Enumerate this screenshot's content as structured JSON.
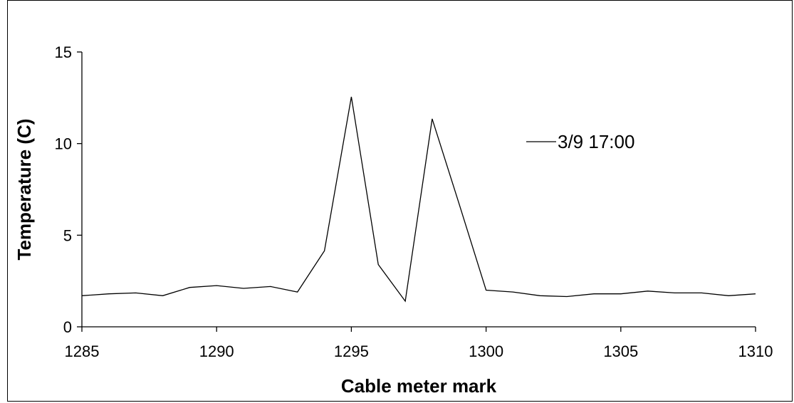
{
  "chart_data": {
    "type": "line",
    "title": "",
    "xlabel": "Cable meter mark",
    "ylabel": "Temperature (C)",
    "xlim": [
      1285,
      1310
    ],
    "ylim": [
      0,
      15
    ],
    "x_ticks": [
      1285,
      1290,
      1295,
      1300,
      1305,
      1310
    ],
    "y_ticks": [
      0,
      5,
      10,
      15
    ],
    "grid": false,
    "legend_position": "right",
    "series": [
      {
        "name": "3/9 17:00",
        "color": "#000000",
        "x": [
          1285,
          1286,
          1287,
          1288,
          1289,
          1290,
          1291,
          1292,
          1293,
          1294,
          1295,
          1296,
          1297,
          1298,
          1299,
          1300,
          1301,
          1302,
          1303,
          1304,
          1305,
          1306,
          1307,
          1308,
          1309,
          1310
        ],
        "values": [
          1.7,
          1.8,
          1.85,
          1.7,
          2.15,
          2.25,
          2.1,
          2.2,
          1.9,
          4.15,
          12.55,
          3.4,
          1.4,
          11.35,
          6.7,
          2.0,
          1.9,
          1.7,
          1.65,
          1.8,
          1.8,
          1.95,
          1.85,
          1.85,
          1.7,
          1.8
        ]
      }
    ]
  }
}
